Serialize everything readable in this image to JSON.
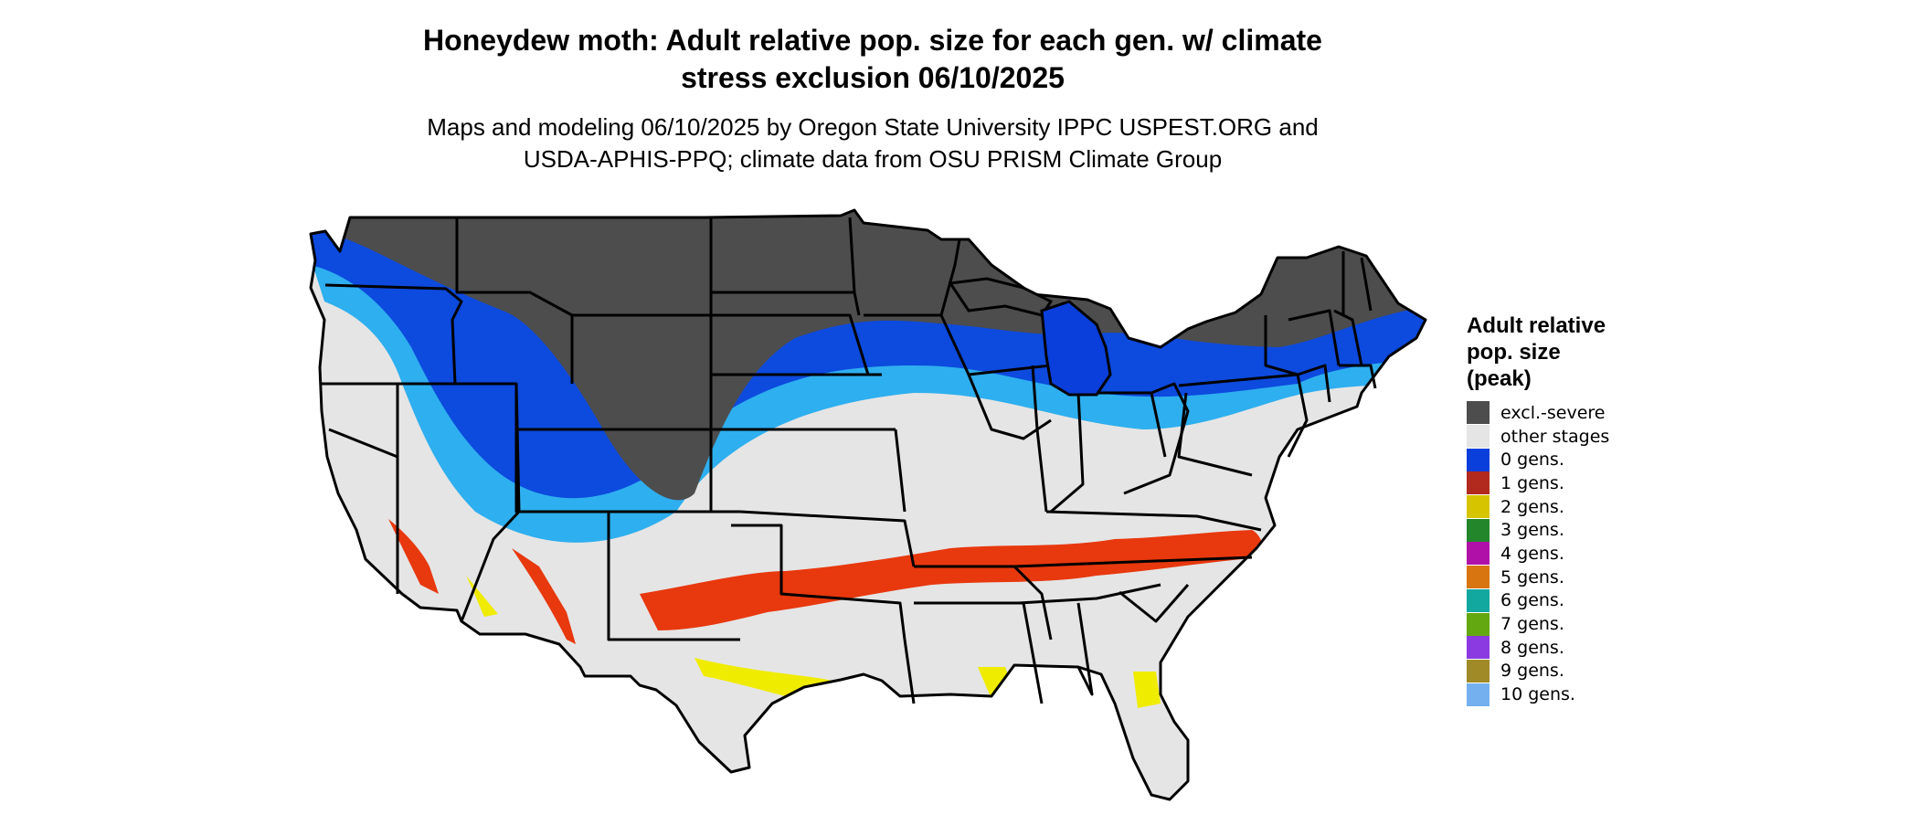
{
  "title": {
    "line1": "Honeydew moth: Adult relative pop. size for each gen. w/ climate",
    "line2": "stress exclusion 06/10/2025"
  },
  "subtitle": {
    "line1": "Maps and modeling 06/10/2025 by Oregon State University IPPC USPEST.ORG and",
    "line2": "USDA-APHIS-PPQ; climate data from OSU PRISM Climate Group"
  },
  "legend": {
    "title_line1": "Adult relative",
    "title_line2": "pop. size",
    "title_line3": "(peak)",
    "items": [
      {
        "label": "excl.-severe",
        "color": "#4d4d4d"
      },
      {
        "label": "other stages",
        "color": "#e5e5e5"
      },
      {
        "label": "0 gens.",
        "color": "#0a3fdc"
      },
      {
        "label": "1 gens.",
        "color": "#b12a1d"
      },
      {
        "label": "2 gens.",
        "color": "#d7c400"
      },
      {
        "label": "3 gens.",
        "color": "#24862a"
      },
      {
        "label": "4 gens.",
        "color": "#b010a8"
      },
      {
        "label": "5 gens.",
        "color": "#d97510"
      },
      {
        "label": "6 gens.",
        "color": "#12a8a0"
      },
      {
        "label": "7 gens.",
        "color": "#63a810"
      },
      {
        "label": "8 gens.",
        "color": "#8a3ae0"
      },
      {
        "label": "9 gens.",
        "color": "#a08a28"
      },
      {
        "label": "10 gens.",
        "color": "#74b0f0"
      }
    ]
  },
  "map_colors": {
    "land": "#e5e5e5",
    "excluded": "#4d4d4d",
    "zero_gen": "#0a3fdc",
    "zero_gen_light": "#19a8f0",
    "one_gen": "#e8380e",
    "two_gen": "#f0ec00",
    "border": "#000000"
  }
}
